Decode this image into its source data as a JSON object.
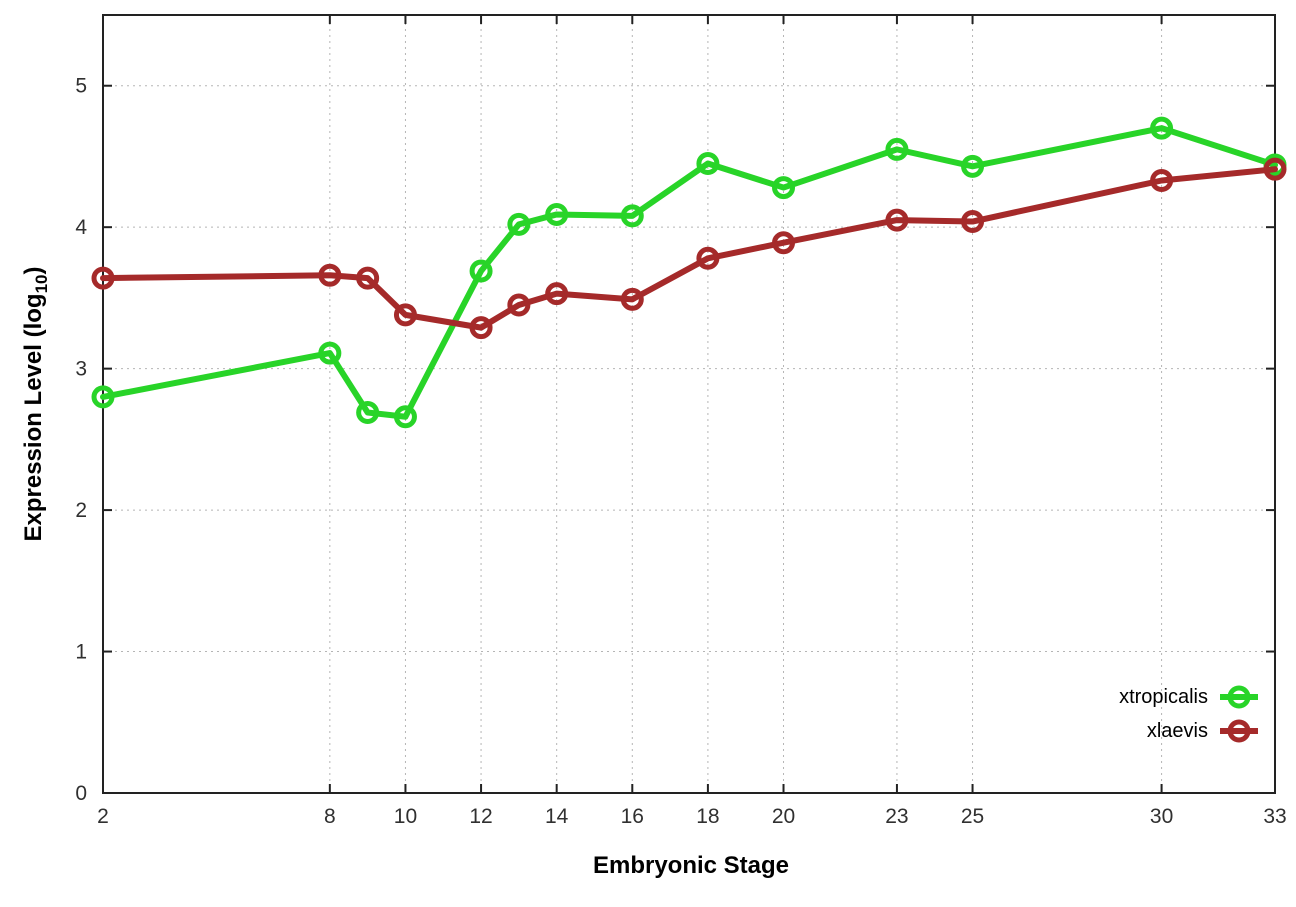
{
  "chart_data": {
    "type": "line",
    "title": "",
    "xlabel": "Embryonic Stage",
    "ylabel_prefix": "Expression Level (log",
    "ylabel_sub": "10",
    "ylabel_suffix": ")",
    "x": [
      2,
      8,
      9,
      10,
      12,
      13,
      14,
      16,
      18,
      20,
      23,
      25,
      30,
      33
    ],
    "series": [
      {
        "name": "xtropicalis",
        "color": "#28d428",
        "values": [
          2.8,
          3.11,
          2.69,
          2.66,
          3.69,
          4.02,
          4.09,
          4.08,
          4.45,
          4.28,
          4.55,
          4.43,
          4.7,
          4.44
        ]
      },
      {
        "name": "xlaevis",
        "color": "#a52a2a",
        "values": [
          3.64,
          3.66,
          3.64,
          3.38,
          3.29,
          3.45,
          3.53,
          3.49,
          3.78,
          3.89,
          4.05,
          4.04,
          4.33,
          4.41
        ]
      }
    ],
    "xticks": [
      2,
      8,
      10,
      12,
      14,
      16,
      18,
      20,
      23,
      25,
      30,
      33
    ],
    "yticks": [
      0,
      1,
      2,
      3,
      4,
      5
    ],
    "xlim": [
      2,
      33
    ],
    "ylim": [
      0,
      5.5
    ],
    "grid": true,
    "legend_position": "inside-bottom-right",
    "marker": "open-circle"
  },
  "style": {
    "background": "#ffffff",
    "border_color": "#222222",
    "grid_color": "#b5b5b5",
    "tick_color": "#222222",
    "tick_label_color": "#303030"
  }
}
